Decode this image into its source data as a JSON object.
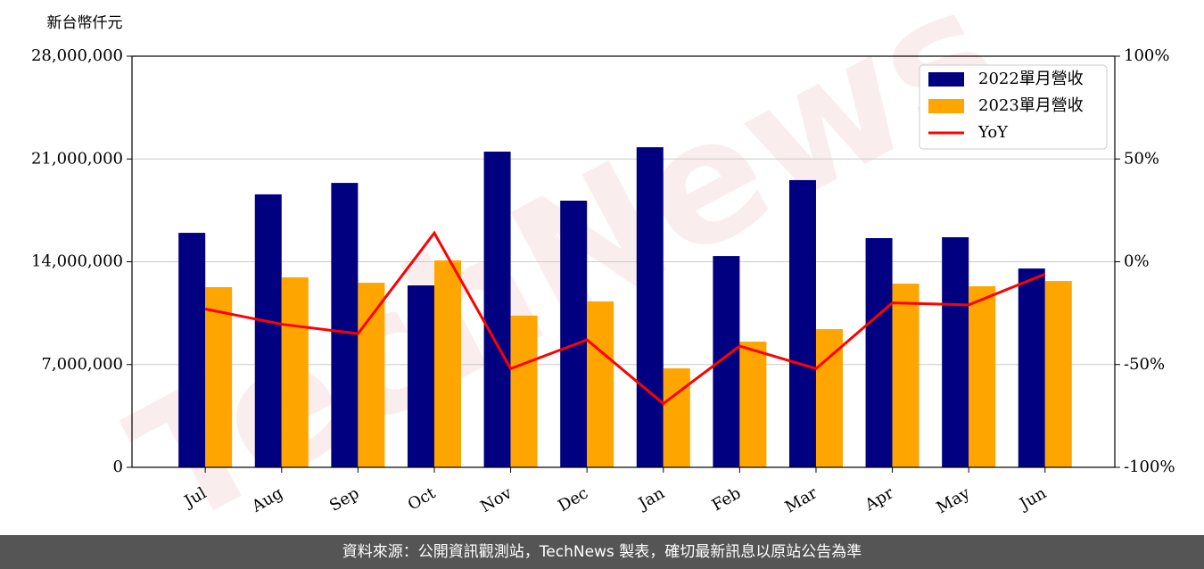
{
  "chart_data": {
    "type": "bar-line",
    "y_label": "新台幣仟元",
    "watermark": "TechNews",
    "categories": [
      "Jul",
      "Aug",
      "Sep",
      "Oct",
      "Nov",
      "Dec",
      "Jan",
      "Feb",
      "Mar",
      "Apr",
      "May",
      "Jun"
    ],
    "series": [
      {
        "name": "2022單月營收",
        "type": "bar",
        "color": "#000080",
        "values": [
          15970000,
          18590000,
          19370000,
          12390000,
          21500000,
          18160000,
          21800000,
          14390000,
          19560000,
          15610000,
          15670000,
          13540000
        ]
      },
      {
        "name": "2023單月營收",
        "type": "bar",
        "color": "#ffa500",
        "values": [
          12270000,
          12940000,
          12570000,
          14090000,
          10330000,
          11300000,
          6740000,
          8560000,
          9410000,
          12510000,
          12330000,
          12690000
        ]
      },
      {
        "name": "YoY",
        "type": "line",
        "axis": "y2",
        "color": "#ff0000",
        "values": [
          -23,
          -30.4,
          -35,
          14,
          -52,
          -38,
          -69,
          -41,
          -52,
          -20,
          -21,
          -6
        ]
      }
    ],
    "ylim": [
      0,
      28000000
    ],
    "yticks": [
      0,
      {
        "value": 7000000,
        "label": "7,000,000"
      },
      {
        "value": 14000000,
        "label": "14,000,000"
      },
      {
        "value": 21000000,
        "label": "21,000,000"
      },
      {
        "value": 28000000,
        "label": "28,000,000"
      }
    ],
    "y2lim": [
      -100,
      100
    ],
    "y2ticks": [
      {
        "value": -100,
        "label": "-100%"
      },
      {
        "value": -50,
        "label": "-50%"
      },
      {
        "value": 0,
        "label": "0%"
      },
      {
        "value": 50,
        "label": "50%"
      },
      {
        "value": 100,
        "label": "100%"
      }
    ],
    "grid": true,
    "legend": "upper right"
  },
  "footer": "資料來源：公開資訊觀測站，TechNews 製表，確切最新訊息以原站公告為準"
}
